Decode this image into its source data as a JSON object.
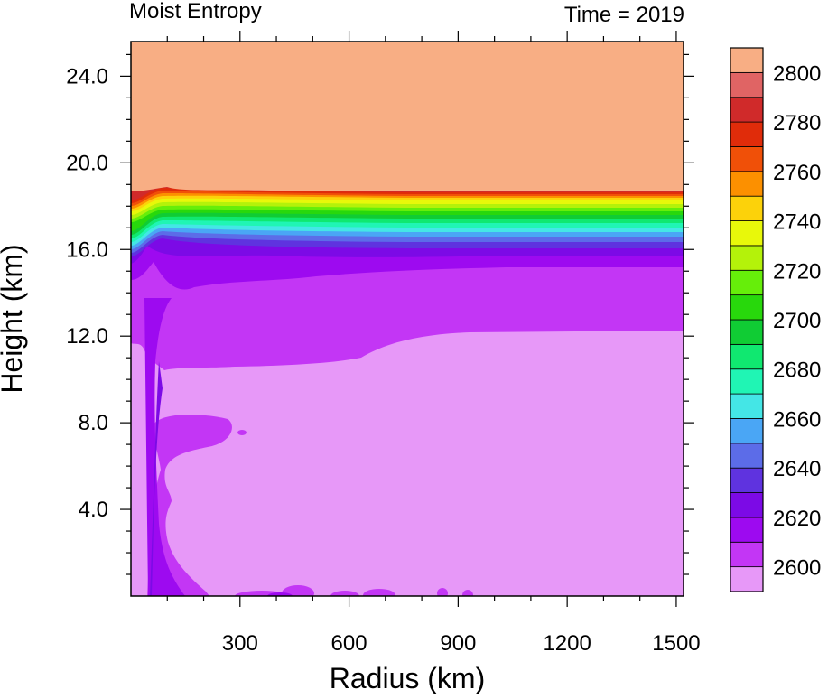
{
  "chart_data": {
    "type": "heatmap",
    "title_left": "Moist Entropy",
    "title_right": "Time = 2019",
    "xlabel": "Radius (km)",
    "ylabel": "Height (km)",
    "xlim": [
      0,
      1520
    ],
    "ylim": [
      0,
      25.6
    ],
    "x_ticks": [
      300,
      600,
      900,
      1200,
      1500
    ],
    "x_tick_labels": [
      "300",
      "600",
      "900",
      "1200",
      "1500"
    ],
    "y_ticks": [
      4,
      8,
      12,
      16,
      20,
      24
    ],
    "y_tick_labels": [
      "4.0",
      "8.0",
      "12.0",
      "16.0",
      "20.0",
      "24.0"
    ],
    "colorbar": {
      "levels": [
        2600,
        2610,
        2620,
        2630,
        2640,
        2650,
        2660,
        2670,
        2680,
        2690,
        2700,
        2710,
        2720,
        2730,
        2740,
        2750,
        2760,
        2770,
        2780,
        2790,
        2800
      ],
      "labels": [
        "2600",
        "2620",
        "2640",
        "2660",
        "2680",
        "2700",
        "2720",
        "2740",
        "2760",
        "2780",
        "2800"
      ],
      "colors": [
        "#e798f8",
        "#c336f5",
        "#9d0af0",
        "#7c0ae6",
        "#5f33df",
        "#5c6ce8",
        "#4aa6f5",
        "#44e6e6",
        "#20f5b4",
        "#10e870",
        "#10cc34",
        "#28d80c",
        "#66ee0a",
        "#b4f20a",
        "#e8f80a",
        "#fcd20a",
        "#fc9000",
        "#f05008",
        "#e02c0a",
        "#d02a2a",
        "#e06464",
        "#f8ae84"
      ]
    }
  }
}
